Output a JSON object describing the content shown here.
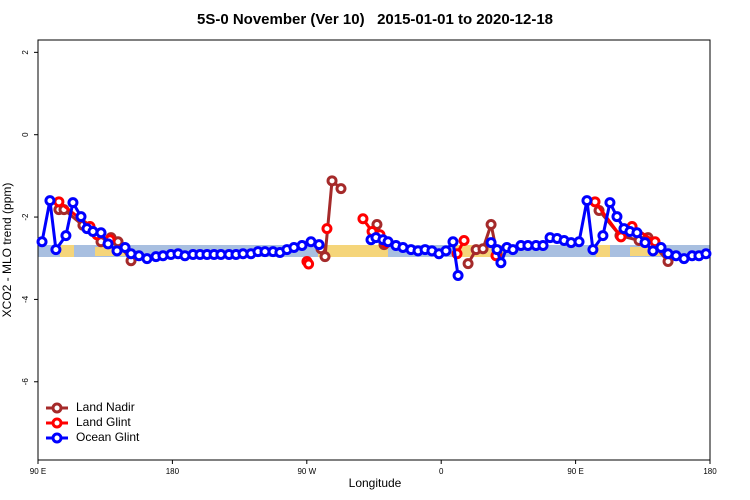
{
  "chart_data": {
    "type": "line",
    "title": "5S-0 November (Ver 10)   2015-01-01 to 2020-12-18",
    "x_label": "Longitude",
    "y_label": "XCO2 - MLO trend (ppm)",
    "xlim": [
      90,
      540
    ],
    "ylim": [
      -7.9,
      2.3
    ],
    "xticks": [
      {
        "value": 90,
        "label": "90 E"
      },
      180,
      {
        "value": 270,
        "label": "90 W"
      },
      {
        "value": 360,
        "label": "0"
      },
      {
        "value": 450,
        "label": "90 E"
      },
      {
        "value": 540,
        "label": "180"
      }
    ],
    "yticks": [
      -6,
      -4,
      -2,
      0,
      2
    ],
    "legend": "bottom-left",
    "series": [
      {
        "name": "Land Nadir",
        "color": "#a52a2a",
        "x": [
          104,
          107.4,
          120.1,
          132.2,
          138.9,
          143.6,
          152.3,
          null,
          279.5,
          282.2,
          286.9,
          292.9,
          null,
          317,
          321.7,
          null,
          378,
          383.4,
          388,
          393.4,
          397.4,
          null,
          465.7,
          479.7,
          492.5,
          498.5,
          511.9
        ],
        "values": [
          -1.82,
          -1.82,
          -2.2,
          -2.6,
          -2.5,
          -2.6,
          -3.06,
          null,
          -2.77,
          -2.96,
          -1.12,
          -1.31,
          null,
          -2.18,
          -2.67,
          null,
          -3.13,
          -2.79,
          -2.77,
          -2.18,
          -2.89,
          null,
          -1.84,
          -2.45,
          -2.57,
          -2.5,
          -3.08
        ]
      },
      {
        "name": "Land Glint",
        "color": "#ff0000",
        "x": [
          104,
          124.8,
          129.5,
          138.2,
          null,
          270.1,
          271.2,
          null,
          283.5,
          null,
          307.6,
          313.7,
          319,
          323.1,
          null,
          370.6,
          375.3,
          null,
          396.7,
          null,
          463,
          480.4,
          487.8,
          503.2
        ],
        "values": [
          -1.63,
          -2.23,
          -2.43,
          -2.55,
          null,
          -3.08,
          -3.14,
          null,
          -2.28,
          null,
          -2.04,
          -2.35,
          -2.43,
          -2.62,
          null,
          -2.89,
          -2.57,
          null,
          -2.94,
          null,
          -1.63,
          -2.48,
          -2.23,
          -2.6
        ]
      },
      {
        "name": "Ocean Glint",
        "color": "#0000ff",
        "x": [
          92.7,
          98,
          102,
          108.7,
          113.4,
          118.8,
          122.8,
          126.8,
          132.2,
          136.9,
          142.9,
          148.3,
          152.3,
          157.6,
          163,
          169,
          173.7,
          179,
          183.8,
          188.4,
          193.8,
          198.5,
          203.2,
          207.9,
          212.5,
          217.9,
          222.6,
          227.3,
          232.6,
          237.3,
          242,
          247.4,
          252,
          256.7,
          261.4,
          266.8,
          272.8,
          278.2,
          null,
          313,
          316.3,
          321,
          324.4,
          329.7,
          334.4,
          339.8,
          344.5,
          349.2,
          353.8,
          358.5,
          363.2,
          367.9,
          371.3,
          null,
          393.4,
          397.4,
          400,
          404,
          408,
          413.4,
          418.1,
          423.5,
          428.2,
          432.9,
          437.6,
          442.3,
          447,
          452.3,
          457.6,
          461.6,
          468.3,
          473,
          477.7,
          482.4,
          486.4,
          491.1,
          496.5,
          501.8,
          507.2,
          511.9,
          517.3,
          522.6,
          528,
          532.6,
          537.3
        ],
        "values": [
          -2.6,
          -1.6,
          -2.79,
          -2.45,
          -1.65,
          -1.99,
          -2.28,
          -2.35,
          -2.38,
          -2.65,
          -2.82,
          -2.74,
          -2.89,
          -2.94,
          -3.01,
          -2.96,
          -2.94,
          -2.91,
          -2.89,
          -2.94,
          -2.91,
          -2.91,
          -2.91,
          -2.91,
          -2.91,
          -2.91,
          -2.91,
          -2.89,
          -2.89,
          -2.84,
          -2.84,
          -2.84,
          -2.86,
          -2.79,
          -2.74,
          -2.69,
          -2.6,
          -2.67,
          null,
          -2.55,
          -2.5,
          -2.55,
          -2.6,
          -2.69,
          -2.74,
          -2.79,
          -2.82,
          -2.79,
          -2.82,
          -2.89,
          -2.82,
          -2.6,
          -3.42,
          null,
          -2.62,
          -2.79,
          -3.11,
          -2.74,
          -2.79,
          -2.69,
          -2.69,
          -2.69,
          -2.69,
          -2.5,
          -2.52,
          -2.57,
          -2.62,
          -2.6,
          -1.6,
          -2.79,
          -2.45,
          -1.65,
          -1.99,
          -2.28,
          -2.35,
          -2.38,
          -2.62,
          -2.82,
          -2.74,
          -2.89,
          -2.94,
          -3.01,
          -2.94,
          -2.94,
          -2.89
        ]
      }
    ]
  }
}
